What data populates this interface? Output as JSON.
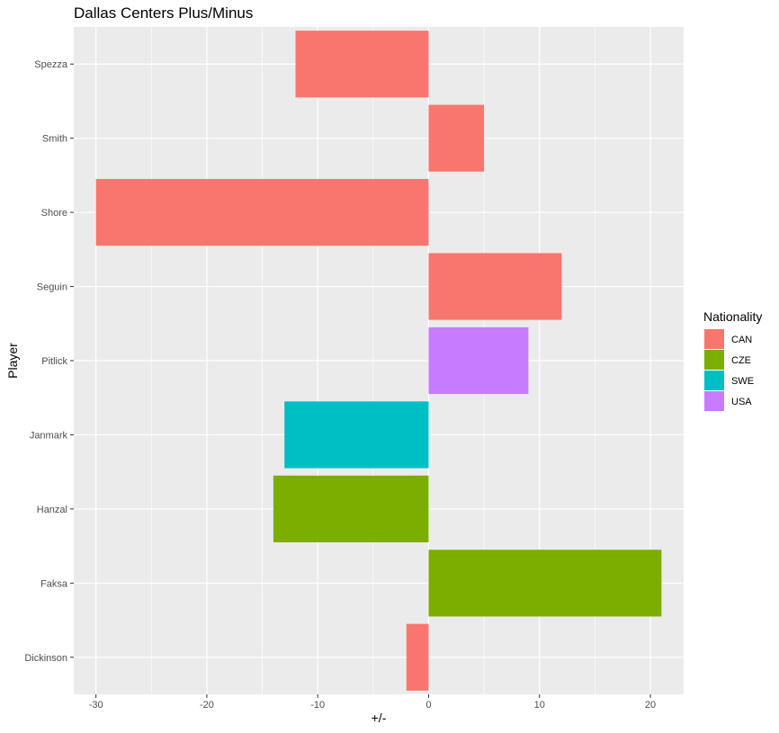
{
  "chart_data": {
    "type": "bar",
    "orientation": "horizontal",
    "title": "Dallas Centers Plus/Minus",
    "xlabel": "+/-",
    "ylabel": "Player",
    "xlim": [
      -32,
      23
    ],
    "x_ticks": [
      -30,
      -20,
      -10,
      0,
      10,
      20
    ],
    "grid": true,
    "legend_position": "right",
    "legend_title": "Nationality",
    "legend": [
      {
        "name": "CAN",
        "color": "#F8766D"
      },
      {
        "name": "CZE",
        "color": "#7CAE00"
      },
      {
        "name": "SWE",
        "color": "#00BFC4"
      },
      {
        "name": "USA",
        "color": "#C77CFF"
      }
    ],
    "categories": [
      "Dickinson",
      "Faksa",
      "Hanzal",
      "Janmark",
      "Pitlick",
      "Seguin",
      "Shore",
      "Smith",
      "Spezza"
    ],
    "values": [
      -2,
      21,
      -14,
      -13,
      9,
      12,
      -30,
      5,
      -12
    ],
    "nationality": [
      "CAN",
      "CZE",
      "CZE",
      "SWE",
      "USA",
      "CAN",
      "CAN",
      "CAN",
      "CAN"
    ]
  }
}
